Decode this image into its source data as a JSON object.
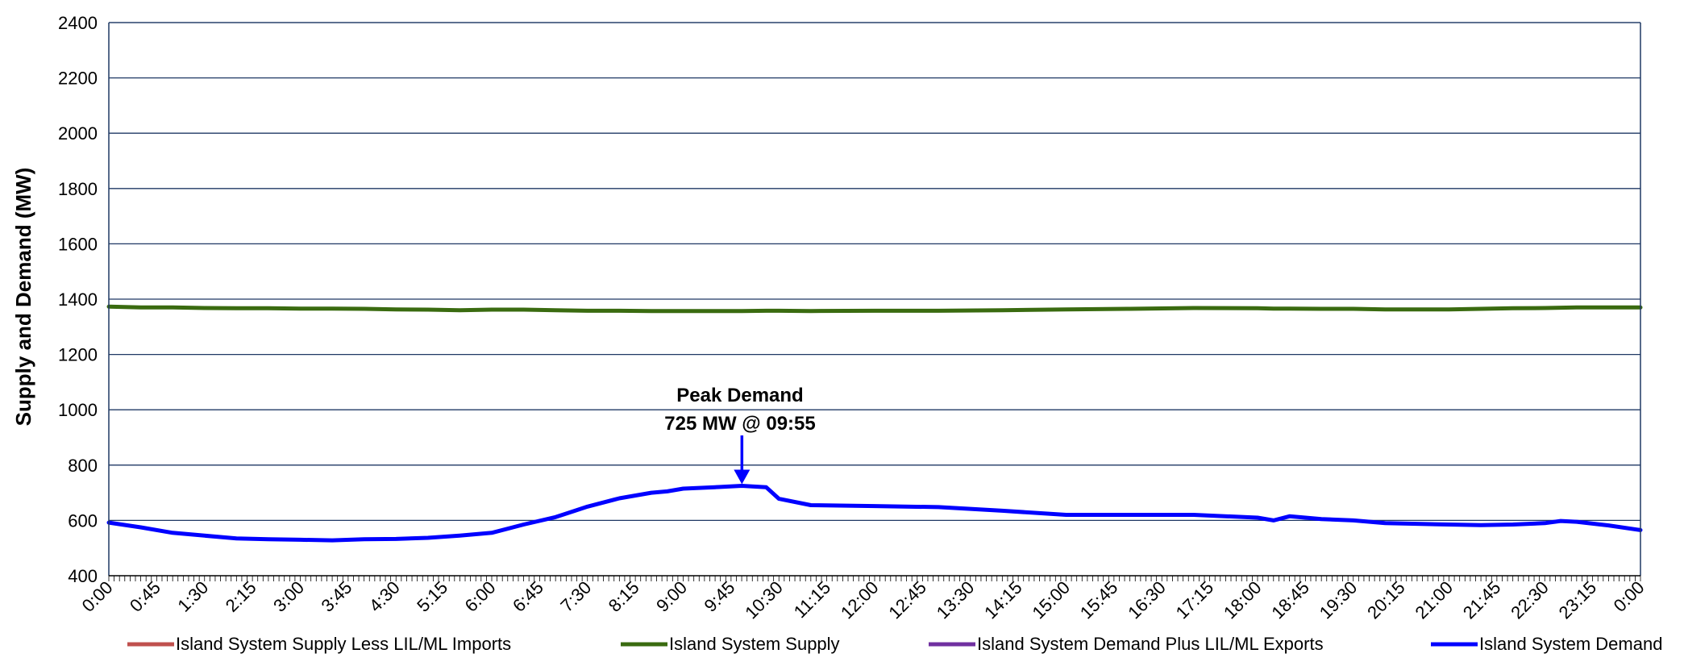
{
  "chart_data": {
    "type": "line",
    "ylabel": "Supply and Demand (MW)",
    "xlabel": "",
    "ylim": [
      400,
      2400
    ],
    "yticks": [
      "400",
      "600",
      "800",
      "1000",
      "1200",
      "1400",
      "1600",
      "1800",
      "2000",
      "2200",
      "2400"
    ],
    "xticks": [
      "0:00",
      "0:45",
      "1:30",
      "2:15",
      "3:00",
      "3:45",
      "4:30",
      "5:15",
      "6:00",
      "6:45",
      "7:30",
      "8:15",
      "9:00",
      "9:45",
      "10:30",
      "11:15",
      "12:00",
      "12:45",
      "13:30",
      "14:15",
      "15:00",
      "15:45",
      "16:30",
      "17:15",
      "18:00",
      "18:45",
      "19:30",
      "20:15",
      "21:00",
      "21:45",
      "22:30",
      "23:15",
      "0:00"
    ],
    "grid": "horizontal",
    "legend_position": "bottom",
    "x_hours": [
      0,
      0.5,
      1,
      1.5,
      2,
      2.5,
      3,
      3.5,
      4,
      4.5,
      5,
      5.5,
      6,
      6.5,
      7,
      7.5,
      8,
      8.5,
      8.75,
      9,
      9.5,
      9.92,
      10.3,
      10.5,
      11,
      12,
      13,
      14,
      15,
      16,
      17,
      18,
      18.25,
      18.5,
      19,
      19.5,
      20,
      21,
      21.5,
      22,
      22.5,
      22.75,
      23,
      23.5,
      24
    ],
    "series": [
      {
        "name": "Island System Supply Less LIL/ML Imports",
        "color": "#c0504d",
        "values": []
      },
      {
        "name": "Island System Supply",
        "color": "#3a6b10",
        "values": [
          1373,
          1370,
          1370,
          1368,
          1367,
          1367,
          1366,
          1366,
          1365,
          1363,
          1362,
          1360,
          1362,
          1362,
          1360,
          1358,
          1358,
          1357,
          1357,
          1357,
          1357,
          1357,
          1358,
          1358,
          1357,
          1358,
          1358,
          1360,
          1363,
          1365,
          1368,
          1367,
          1366,
          1366,
          1365,
          1365,
          1363,
          1363,
          1365,
          1367,
          1368,
          1369,
          1370,
          1370,
          1370
        ]
      },
      {
        "name": "Island System Demand Plus LIL/ML Exports",
        "color": "#7030a0",
        "values": []
      },
      {
        "name": "Island System Demand",
        "color": "#0000ff",
        "values": [
          592,
          575,
          555,
          545,
          535,
          532,
          530,
          528,
          532,
          533,
          537,
          545,
          555,
          585,
          612,
          650,
          680,
          700,
          705,
          715,
          720,
          725,
          720,
          678,
          655,
          652,
          648,
          635,
          620,
          620,
          620,
          610,
          600,
          615,
          605,
          600,
          590,
          585,
          583,
          585,
          590,
          598,
          595,
          582,
          565
        ]
      }
    ],
    "annotation": {
      "line1": "Peak Demand",
      "line2": "725 MW @ 09:55",
      "x_hours": 9.92,
      "y": 725
    }
  }
}
